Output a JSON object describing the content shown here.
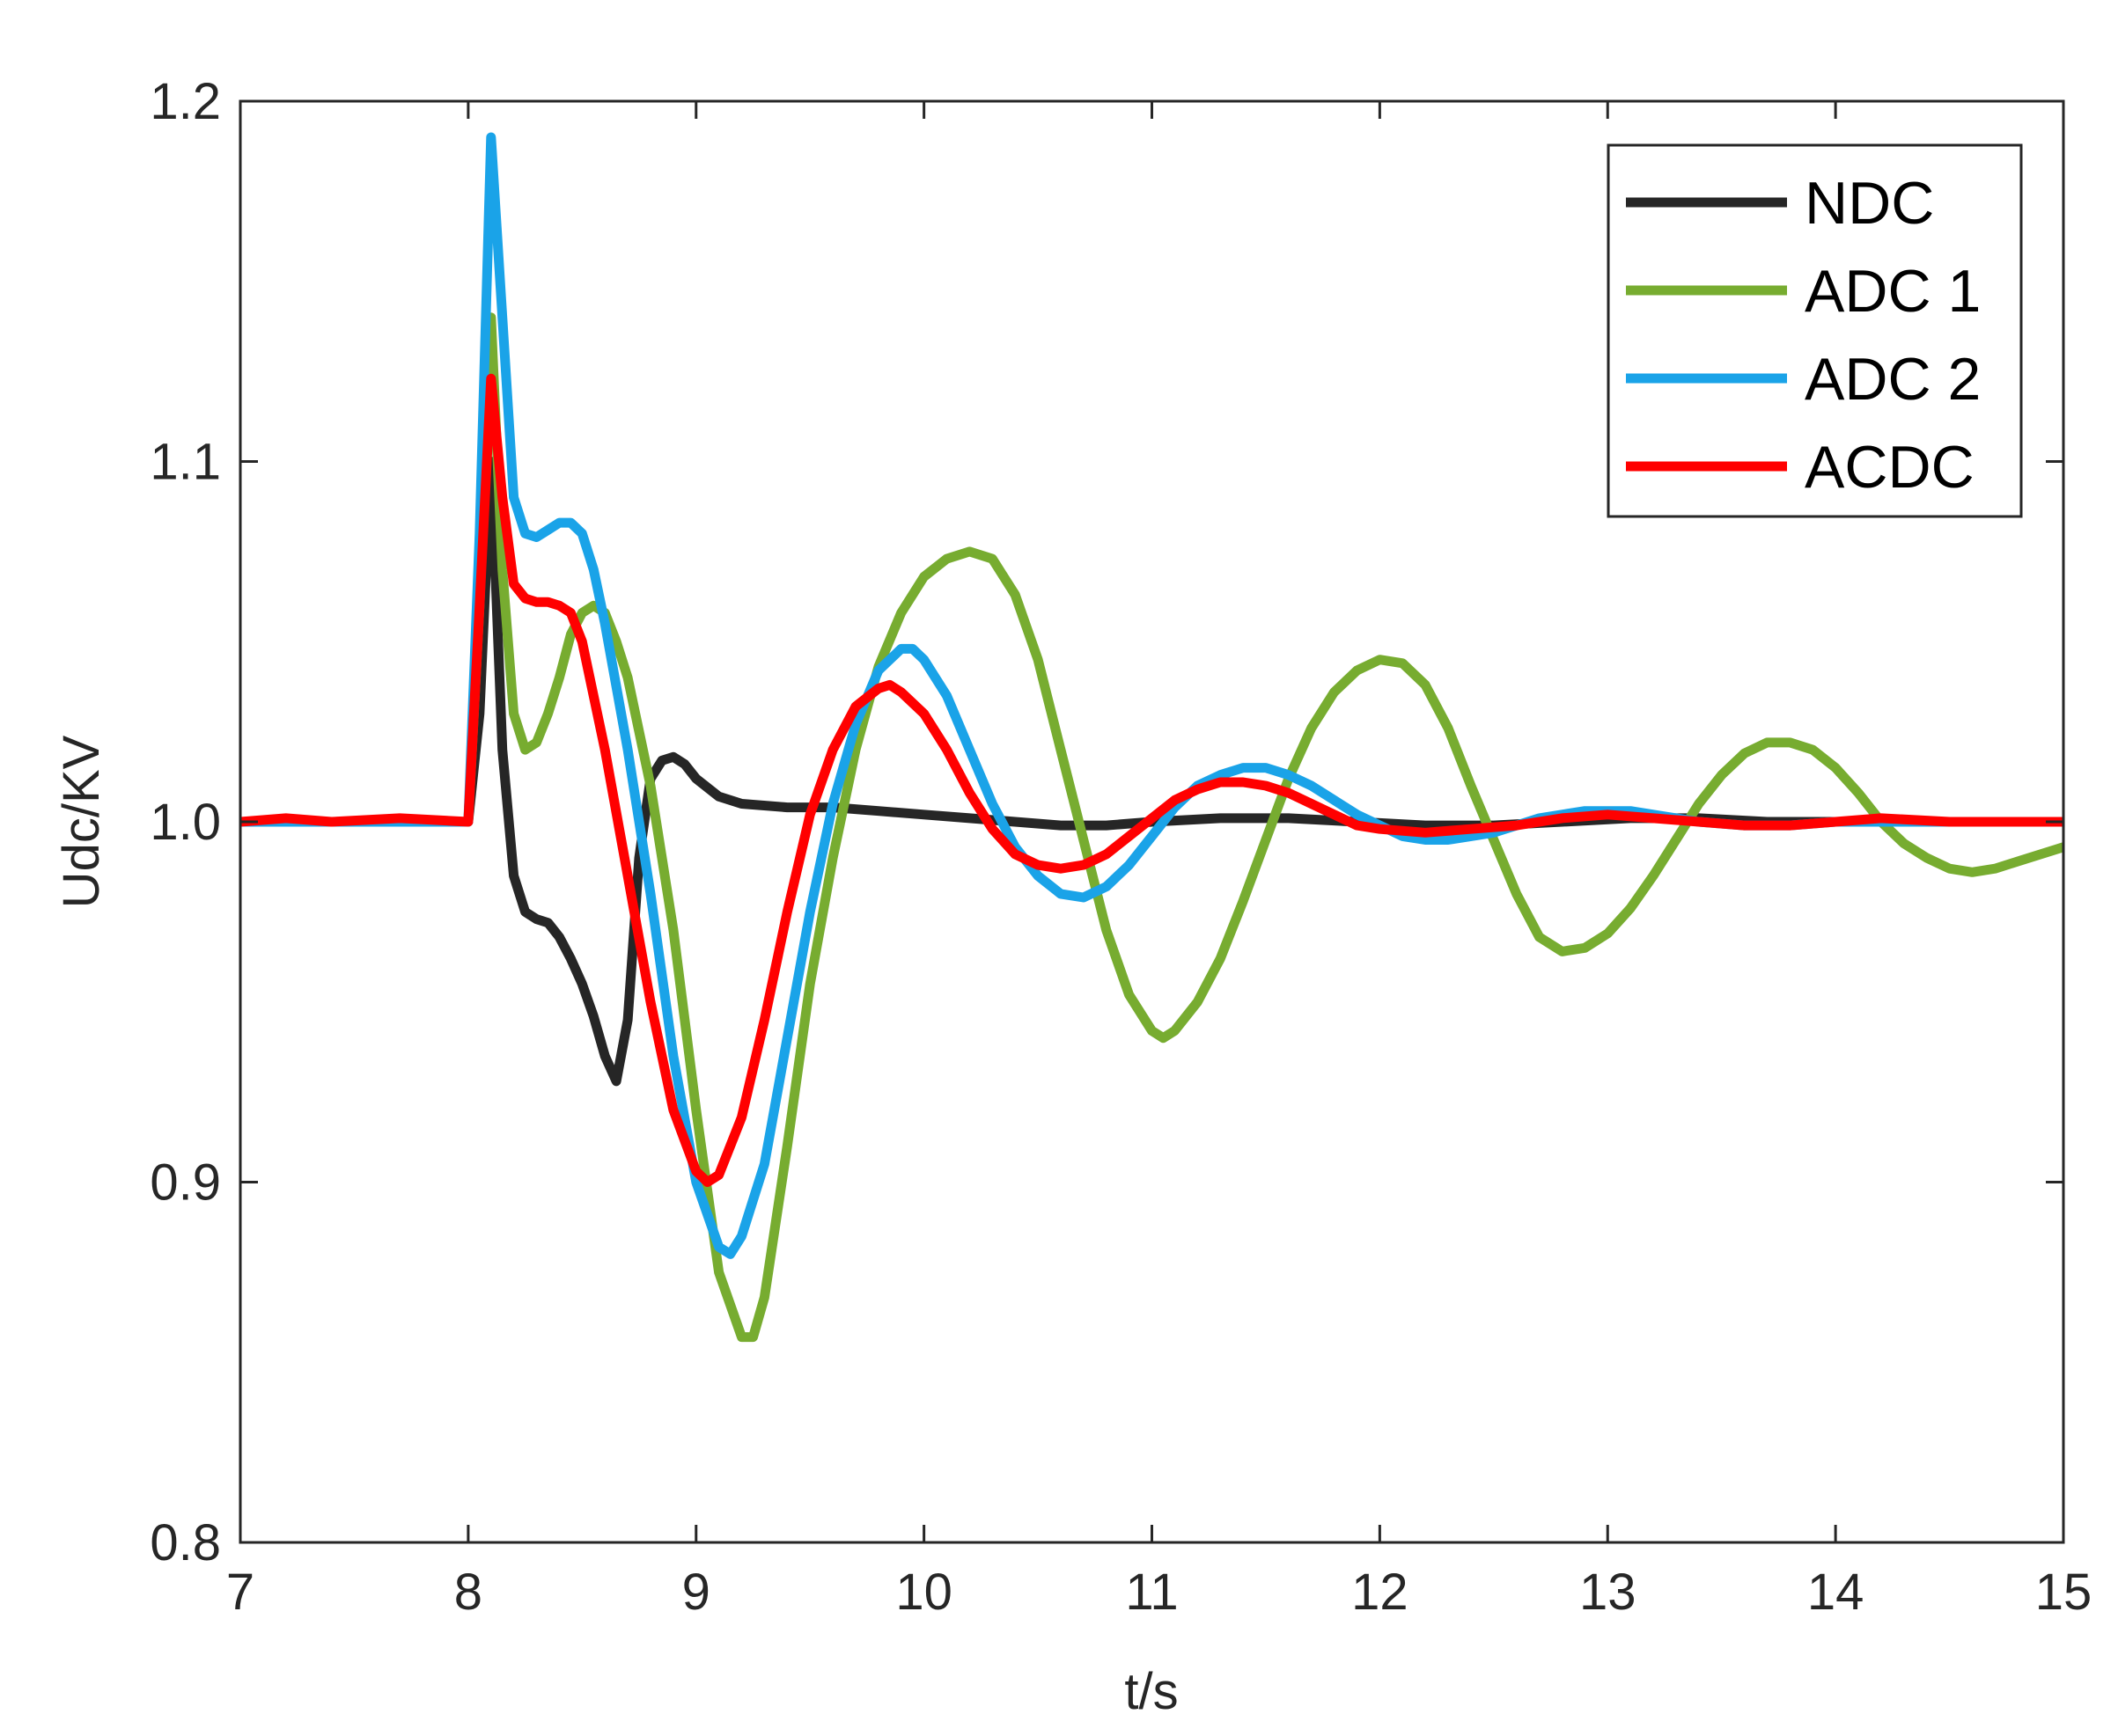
{
  "chart_data": {
    "type": "line",
    "title": "",
    "xlabel": "t/s",
    "ylabel": "Udc/KV",
    "xlim": [
      7,
      15
    ],
    "ylim": [
      0.8,
      1.2
    ],
    "xticks": [
      7,
      8,
      9,
      10,
      11,
      12,
      13,
      14,
      15
    ],
    "xtick_labels": [
      "7",
      "8",
      "9",
      "10",
      "11",
      "12",
      "13",
      "14",
      "15"
    ],
    "yticks": [
      0.8,
      0.9,
      1.0,
      1.1,
      1.2
    ],
    "ytick_labels": [
      "0.8",
      "0.9",
      "1.0",
      "1.1",
      "1.2"
    ],
    "grid": false,
    "legend_position": "top-right",
    "series": [
      {
        "name": "NDC",
        "color": "#262626",
        "points": [
          [
            7,
            1.0
          ],
          [
            7.5,
            1.0
          ],
          [
            8.0,
            1.0
          ],
          [
            8.05,
            1.03
          ],
          [
            8.1,
            1.1
          ],
          [
            8.15,
            1.02
          ],
          [
            8.2,
            0.985
          ],
          [
            8.25,
            0.975
          ],
          [
            8.3,
            0.973
          ],
          [
            8.35,
            0.972
          ],
          [
            8.4,
            0.968
          ],
          [
            8.45,
            0.962
          ],
          [
            8.5,
            0.955
          ],
          [
            8.55,
            0.946
          ],
          [
            8.6,
            0.935
          ],
          [
            8.65,
            0.928
          ],
          [
            8.7,
            0.945
          ],
          [
            8.75,
            0.99
          ],
          [
            8.8,
            1.012
          ],
          [
            8.85,
            1.017
          ],
          [
            8.9,
            1.018
          ],
          [
            8.95,
            1.016
          ],
          [
            9.0,
            1.012
          ],
          [
            9.1,
            1.007
          ],
          [
            9.2,
            1.005
          ],
          [
            9.4,
            1.004
          ],
          [
            9.6,
            1.004
          ],
          [
            9.8,
            1.003
          ],
          [
            10.0,
            1.002
          ],
          [
            10.2,
            1.001
          ],
          [
            10.4,
            1.0
          ],
          [
            10.6,
            0.999
          ],
          [
            10.8,
            0.999
          ],
          [
            11.0,
            1.0
          ],
          [
            11.3,
            1.001
          ],
          [
            11.6,
            1.001
          ],
          [
            11.9,
            1.0
          ],
          [
            12.2,
            0.999
          ],
          [
            12.5,
            0.999
          ],
          [
            12.8,
            1.0
          ],
          [
            13.1,
            1.001
          ],
          [
            13.4,
            1.001
          ],
          [
            13.7,
            1.0
          ],
          [
            14.0,
            1.0
          ],
          [
            14.5,
            1.0
          ],
          [
            15.0,
            1.0
          ]
        ]
      },
      {
        "name": "ADC 1",
        "color": "#77AC30",
        "points": [
          [
            7,
            1.0
          ],
          [
            7.5,
            1.0
          ],
          [
            8.0,
            1.0
          ],
          [
            8.05,
            1.06
          ],
          [
            8.1,
            1.14
          ],
          [
            8.15,
            1.07
          ],
          [
            8.2,
            1.03
          ],
          [
            8.25,
            1.02
          ],
          [
            8.3,
            1.022
          ],
          [
            8.35,
            1.03
          ],
          [
            8.4,
            1.04
          ],
          [
            8.45,
            1.052
          ],
          [
            8.5,
            1.058
          ],
          [
            8.55,
            1.06
          ],
          [
            8.6,
            1.058
          ],
          [
            8.65,
            1.05
          ],
          [
            8.7,
            1.04
          ],
          [
            8.8,
            1.01
          ],
          [
            8.9,
            0.97
          ],
          [
            9.0,
            0.92
          ],
          [
            9.1,
            0.875
          ],
          [
            9.2,
            0.857
          ],
          [
            9.25,
            0.857
          ],
          [
            9.3,
            0.868
          ],
          [
            9.4,
            0.91
          ],
          [
            9.5,
            0.955
          ],
          [
            9.6,
            0.99
          ],
          [
            9.7,
            1.02
          ],
          [
            9.8,
            1.043
          ],
          [
            9.9,
            1.058
          ],
          [
            10.0,
            1.068
          ],
          [
            10.1,
            1.073
          ],
          [
            10.2,
            1.075
          ],
          [
            10.3,
            1.073
          ],
          [
            10.4,
            1.063
          ],
          [
            10.5,
            1.045
          ],
          [
            10.6,
            1.02
          ],
          [
            10.7,
            0.995
          ],
          [
            10.8,
            0.97
          ],
          [
            10.9,
            0.952
          ],
          [
            11.0,
            0.942
          ],
          [
            11.05,
            0.94
          ],
          [
            11.1,
            0.942
          ],
          [
            11.2,
            0.95
          ],
          [
            11.3,
            0.962
          ],
          [
            11.4,
            0.978
          ],
          [
            11.5,
            0.995
          ],
          [
            11.6,
            1.012
          ],
          [
            11.7,
            1.026
          ],
          [
            11.8,
            1.036
          ],
          [
            11.9,
            1.042
          ],
          [
            12.0,
            1.045
          ],
          [
            12.1,
            1.044
          ],
          [
            12.2,
            1.038
          ],
          [
            12.3,
            1.026
          ],
          [
            12.4,
            1.01
          ],
          [
            12.5,
            0.995
          ],
          [
            12.6,
            0.98
          ],
          [
            12.7,
            0.968
          ],
          [
            12.8,
            0.964
          ],
          [
            12.9,
            0.965
          ],
          [
            13.0,
            0.969
          ],
          [
            13.1,
            0.976
          ],
          [
            13.2,
            0.985
          ],
          [
            13.3,
            0.995
          ],
          [
            13.4,
            1.005
          ],
          [
            13.5,
            1.013
          ],
          [
            13.6,
            1.019
          ],
          [
            13.7,
            1.022
          ],
          [
            13.8,
            1.022
          ],
          [
            13.9,
            1.02
          ],
          [
            14.0,
            1.015
          ],
          [
            14.1,
            1.008
          ],
          [
            14.2,
            1.0
          ],
          [
            14.3,
            0.994
          ],
          [
            14.4,
            0.99
          ],
          [
            14.5,
            0.987
          ],
          [
            14.6,
            0.986
          ],
          [
            14.7,
            0.987
          ],
          [
            14.8,
            0.989
          ],
          [
            14.9,
            0.991
          ],
          [
            15.0,
            0.993
          ]
        ]
      },
      {
        "name": "ADC 2",
        "color": "#1AA3E8",
        "points": [
          [
            7,
            1.0
          ],
          [
            7.5,
            1.0
          ],
          [
            8.0,
            1.0
          ],
          [
            8.05,
            1.08
          ],
          [
            8.1,
            1.19
          ],
          [
            8.15,
            1.14
          ],
          [
            8.2,
            1.09
          ],
          [
            8.25,
            1.08
          ],
          [
            8.3,
            1.079
          ],
          [
            8.35,
            1.081
          ],
          [
            8.4,
            1.083
          ],
          [
            8.45,
            1.083
          ],
          [
            8.5,
            1.08
          ],
          [
            8.55,
            1.07
          ],
          [
            8.6,
            1.055
          ],
          [
            8.7,
            1.02
          ],
          [
            8.8,
            0.98
          ],
          [
            8.9,
            0.935
          ],
          [
            9.0,
            0.9
          ],
          [
            9.1,
            0.882
          ],
          [
            9.15,
            0.88
          ],
          [
            9.2,
            0.885
          ],
          [
            9.3,
            0.905
          ],
          [
            9.4,
            0.94
          ],
          [
            9.5,
            0.975
          ],
          [
            9.6,
            1.005
          ],
          [
            9.7,
            1.027
          ],
          [
            9.8,
            1.042
          ],
          [
            9.9,
            1.048
          ],
          [
            9.95,
            1.048
          ],
          [
            10.0,
            1.045
          ],
          [
            10.1,
            1.035
          ],
          [
            10.2,
            1.02
          ],
          [
            10.3,
            1.005
          ],
          [
            10.4,
            0.993
          ],
          [
            10.5,
            0.985
          ],
          [
            10.6,
            0.98
          ],
          [
            10.7,
            0.979
          ],
          [
            10.8,
            0.982
          ],
          [
            10.9,
            0.988
          ],
          [
            11.0,
            0.996
          ],
          [
            11.1,
            1.004
          ],
          [
            11.2,
            1.01
          ],
          [
            11.3,
            1.013
          ],
          [
            11.4,
            1.015
          ],
          [
            11.5,
            1.015
          ],
          [
            11.6,
            1.013
          ],
          [
            11.7,
            1.01
          ],
          [
            11.8,
            1.006
          ],
          [
            11.9,
            1.002
          ],
          [
            12.0,
            0.999
          ],
          [
            12.1,
            0.996
          ],
          [
            12.2,
            0.995
          ],
          [
            12.3,
            0.995
          ],
          [
            12.4,
            0.996
          ],
          [
            12.5,
            0.997
          ],
          [
            12.6,
            0.999
          ],
          [
            12.7,
            1.001
          ],
          [
            12.8,
            1.002
          ],
          [
            12.9,
            1.003
          ],
          [
            13.0,
            1.003
          ],
          [
            13.1,
            1.003
          ],
          [
            13.2,
            1.002
          ],
          [
            13.3,
            1.001
          ],
          [
            13.4,
            1.0
          ],
          [
            13.6,
            0.999
          ],
          [
            13.8,
            0.999
          ],
          [
            14.0,
            1.0
          ],
          [
            14.5,
            1.0
          ],
          [
            15.0,
            1.0
          ]
        ]
      },
      {
        "name": "ACDC",
        "color": "#FF0000",
        "points": [
          [
            7,
            1.0
          ],
          [
            7.2,
            1.001
          ],
          [
            7.4,
            1.0
          ],
          [
            7.7,
            1.001
          ],
          [
            8.0,
            1.0
          ],
          [
            8.05,
            1.06
          ],
          [
            8.1,
            1.123
          ],
          [
            8.15,
            1.09
          ],
          [
            8.2,
            1.066
          ],
          [
            8.25,
            1.062
          ],
          [
            8.3,
            1.061
          ],
          [
            8.35,
            1.061
          ],
          [
            8.4,
            1.06
          ],
          [
            8.45,
            1.058
          ],
          [
            8.5,
            1.05
          ],
          [
            8.6,
            1.02
          ],
          [
            8.7,
            0.985
          ],
          [
            8.8,
            0.95
          ],
          [
            8.9,
            0.92
          ],
          [
            9.0,
            0.903
          ],
          [
            9.05,
            0.9
          ],
          [
            9.1,
            0.902
          ],
          [
            9.2,
            0.918
          ],
          [
            9.3,
            0.945
          ],
          [
            9.4,
            0.975
          ],
          [
            9.5,
            1.002
          ],
          [
            9.6,
            1.02
          ],
          [
            9.7,
            1.032
          ],
          [
            9.8,
            1.037
          ],
          [
            9.85,
            1.038
          ],
          [
            9.9,
            1.036
          ],
          [
            10.0,
            1.03
          ],
          [
            10.1,
            1.02
          ],
          [
            10.2,
            1.008
          ],
          [
            10.3,
            0.998
          ],
          [
            10.4,
            0.991
          ],
          [
            10.5,
            0.988
          ],
          [
            10.6,
            0.987
          ],
          [
            10.7,
            0.988
          ],
          [
            10.8,
            0.991
          ],
          [
            10.9,
            0.996
          ],
          [
            11.0,
            1.001
          ],
          [
            11.1,
            1.006
          ],
          [
            11.2,
            1.009
          ],
          [
            11.3,
            1.011
          ],
          [
            11.4,
            1.011
          ],
          [
            11.5,
            1.01
          ],
          [
            11.6,
            1.008
          ],
          [
            11.7,
            1.005
          ],
          [
            11.8,
            1.002
          ],
          [
            11.9,
            0.999
          ],
          [
            12.0,
            0.998
          ],
          [
            12.2,
            0.997
          ],
          [
            12.4,
            0.998
          ],
          [
            12.6,
            0.999
          ],
          [
            12.8,
            1.001
          ],
          [
            13.0,
            1.002
          ],
          [
            13.2,
            1.001
          ],
          [
            13.4,
            1.0
          ],
          [
            13.6,
            0.999
          ],
          [
            13.8,
            0.999
          ],
          [
            14.0,
            1.0
          ],
          [
            14.2,
            1.001
          ],
          [
            14.5,
            1.0
          ],
          [
            15.0,
            1.0
          ]
        ]
      }
    ]
  }
}
